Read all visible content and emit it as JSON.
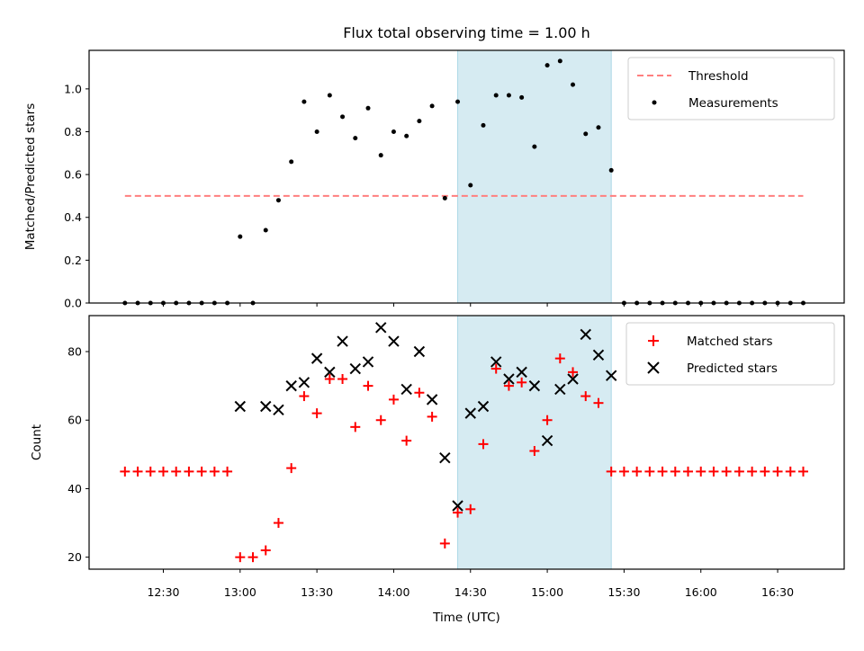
{
  "chart_data": [
    {
      "type": "scatter",
      "title": "Flux total observing time = 1.00 h",
      "ylabel": "Matched/Predicted stars",
      "xlabel": "",
      "xlim": [
        "12:01",
        "16:56"
      ],
      "ylim": [
        0,
        1.18
      ],
      "yticks": [
        "0.0",
        "0.2",
        "0.4",
        "0.6",
        "0.8",
        "1.0"
      ],
      "grid": false,
      "legend_position": "top-right",
      "shaded_interval": {
        "start": "14:25",
        "end": "15:25",
        "color": "#add8e6"
      },
      "threshold": {
        "name": "Threshold",
        "value": 0.5,
        "x_start": "12:15",
        "x_end": "16:40",
        "color": "#ff7f7f"
      },
      "series": [
        {
          "name": "Measurements",
          "color": "#000000",
          "marker": "dot",
          "x": [
            "12:15",
            "12:20",
            "12:25",
            "12:30",
            "12:35",
            "12:40",
            "12:45",
            "12:50",
            "12:55",
            "13:00",
            "13:05",
            "13:10",
            "13:15",
            "13:20",
            "13:25",
            "13:30",
            "13:35",
            "13:40",
            "13:45",
            "13:50",
            "13:55",
            "14:00",
            "14:05",
            "14:10",
            "14:15",
            "14:20",
            "14:25",
            "14:30",
            "14:35",
            "14:40",
            "14:45",
            "14:50",
            "14:55",
            "15:00",
            "15:05",
            "15:10",
            "15:15",
            "15:20",
            "15:25",
            "15:30",
            "15:35",
            "15:40",
            "15:45",
            "15:50",
            "15:55",
            "16:00",
            "16:05",
            "16:10",
            "16:15",
            "16:20",
            "16:25",
            "16:30",
            "16:35",
            "16:40"
          ],
          "y": [
            0,
            0,
            0,
            0,
            0,
            0,
            0,
            0,
            0,
            0.31,
            0,
            0.34,
            0.48,
            0.66,
            0.94,
            0.8,
            0.97,
            0.87,
            0.77,
            0.91,
            0.69,
            0.8,
            0.78,
            0.85,
            0.92,
            0.49,
            0.94,
            0.55,
            0.83,
            0.97,
            0.97,
            0.96,
            0.73,
            1.11,
            1.13,
            1.02,
            0.79,
            0.82,
            0.62,
            0,
            0,
            0,
            0,
            0,
            0,
            0,
            0,
            0,
            0,
            0,
            0,
            0,
            0,
            0
          ]
        }
      ]
    },
    {
      "type": "scatter",
      "xlabel": "Time (UTC)",
      "ylabel": "Count",
      "xlim": [
        "12:01",
        "16:56"
      ],
      "ylim": [
        16.5,
        90.5
      ],
      "xticks": [
        "12:30",
        "13:00",
        "13:30",
        "14:00",
        "14:30",
        "15:00",
        "15:30",
        "16:00",
        "16:30"
      ],
      "yticks": [
        "20",
        "40",
        "60",
        "80"
      ],
      "grid": false,
      "legend_position": "top-right",
      "shaded_interval": {
        "start": "14:25",
        "end": "15:25",
        "color": "#add8e6"
      },
      "series": [
        {
          "name": "Matched stars",
          "color": "#ff0000",
          "marker": "plus",
          "x": [
            "12:15",
            "12:20",
            "12:25",
            "12:30",
            "12:35",
            "12:40",
            "12:45",
            "12:50",
            "12:55",
            "13:00",
            "13:05",
            "13:10",
            "13:15",
            "13:20",
            "13:25",
            "13:30",
            "13:35",
            "13:40",
            "13:45",
            "13:50",
            "13:55",
            "14:00",
            "14:05",
            "14:10",
            "14:15",
            "14:20",
            "14:25",
            "14:30",
            "14:35",
            "14:40",
            "14:45",
            "14:50",
            "14:55",
            "15:00",
            "15:05",
            "15:10",
            "15:15",
            "15:20",
            "15:25",
            "15:30",
            "15:35",
            "15:40",
            "15:45",
            "15:50",
            "15:55",
            "16:00",
            "16:05",
            "16:10",
            "16:15",
            "16:20",
            "16:25",
            "16:30",
            "16:35",
            "16:40"
          ],
          "y": [
            45,
            45,
            45,
            45,
            45,
            45,
            45,
            45,
            45,
            20,
            20,
            22,
            30,
            46,
            67,
            62,
            72,
            72,
            58,
            70,
            60,
            66,
            54,
            68,
            61,
            24,
            33,
            34,
            53,
            75,
            70,
            71,
            51,
            60,
            78,
            74,
            67,
            65,
            45,
            45,
            45,
            45,
            45,
            45,
            45,
            45,
            45,
            45,
            45,
            45,
            45,
            45,
            45,
            45
          ]
        },
        {
          "name": "Predicted stars",
          "color": "#000000",
          "marker": "x",
          "x": [
            "13:00",
            "13:10",
            "13:15",
            "13:20",
            "13:25",
            "13:30",
            "13:35",
            "13:40",
            "13:45",
            "13:50",
            "13:55",
            "14:00",
            "14:05",
            "14:10",
            "14:15",
            "14:20",
            "14:25",
            "14:30",
            "14:35",
            "14:40",
            "14:45",
            "14:50",
            "14:55",
            "15:00",
            "15:05",
            "15:10",
            "15:15",
            "15:20",
            "15:25"
          ],
          "y": [
            64,
            64,
            63,
            70,
            71,
            78,
            74,
            83,
            75,
            77,
            87,
            83,
            69,
            80,
            66,
            49,
            35,
            62,
            64,
            77,
            72,
            74,
            70,
            54,
            69,
            72,
            85,
            79,
            73
          ]
        }
      ]
    }
  ]
}
